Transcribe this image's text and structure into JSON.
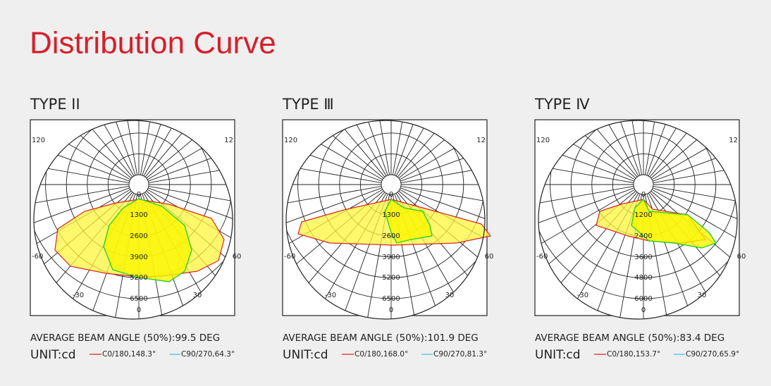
{
  "title": "Distribution Curve",
  "panels": [
    {
      "name": "TYPE II",
      "corner_labels": [
        "120",
        "12"
      ],
      "side_labels": [
        "-60",
        "60"
      ],
      "bottom_labels": [
        "-30",
        "30"
      ],
      "center_labels": [
        "0",
        "0"
      ],
      "rings": [
        "1300",
        "2600",
        "3900",
        "5200",
        "6500"
      ],
      "beam_angle": "AVERAGE BEAM ANGLE (50%):99.5 DEG",
      "unit": "UNIT:cd",
      "legend": [
        "C0/180,148.3°",
        "C90/270,64.3°"
      ]
    },
    {
      "name": "TYPE Ⅲ",
      "corner_labels": [
        "120",
        "12"
      ],
      "side_labels": [
        "-60",
        "60"
      ],
      "bottom_labels": [
        "-30",
        "30"
      ],
      "center_labels": [
        "0",
        "0"
      ],
      "rings": [
        "1300",
        "2600",
        "3900",
        "5200",
        "6500"
      ],
      "beam_angle": "AVERAGE BEAM ANGLE (50%):101.9 DEG",
      "unit": "UNIT:cd",
      "legend": [
        "C0/180,168.0°",
        "C90/270,81.3°"
      ]
    },
    {
      "name": "TYPE Ⅳ",
      "corner_labels": [
        "120",
        "12"
      ],
      "side_labels": [
        "-60",
        "60"
      ],
      "bottom_labels": [
        "-30",
        "30"
      ],
      "center_labels": [
        "0",
        "0"
      ],
      "rings": [
        "1200",
        "2400",
        "3600",
        "4800",
        "6000"
      ],
      "beam_angle": "AVERAGE BEAM ANGLE (50%):83.4 DEG",
      "unit": "UNIT:cd",
      "legend": [
        "C0/180,153.7°",
        "C90/270,65.9°"
      ]
    }
  ]
}
